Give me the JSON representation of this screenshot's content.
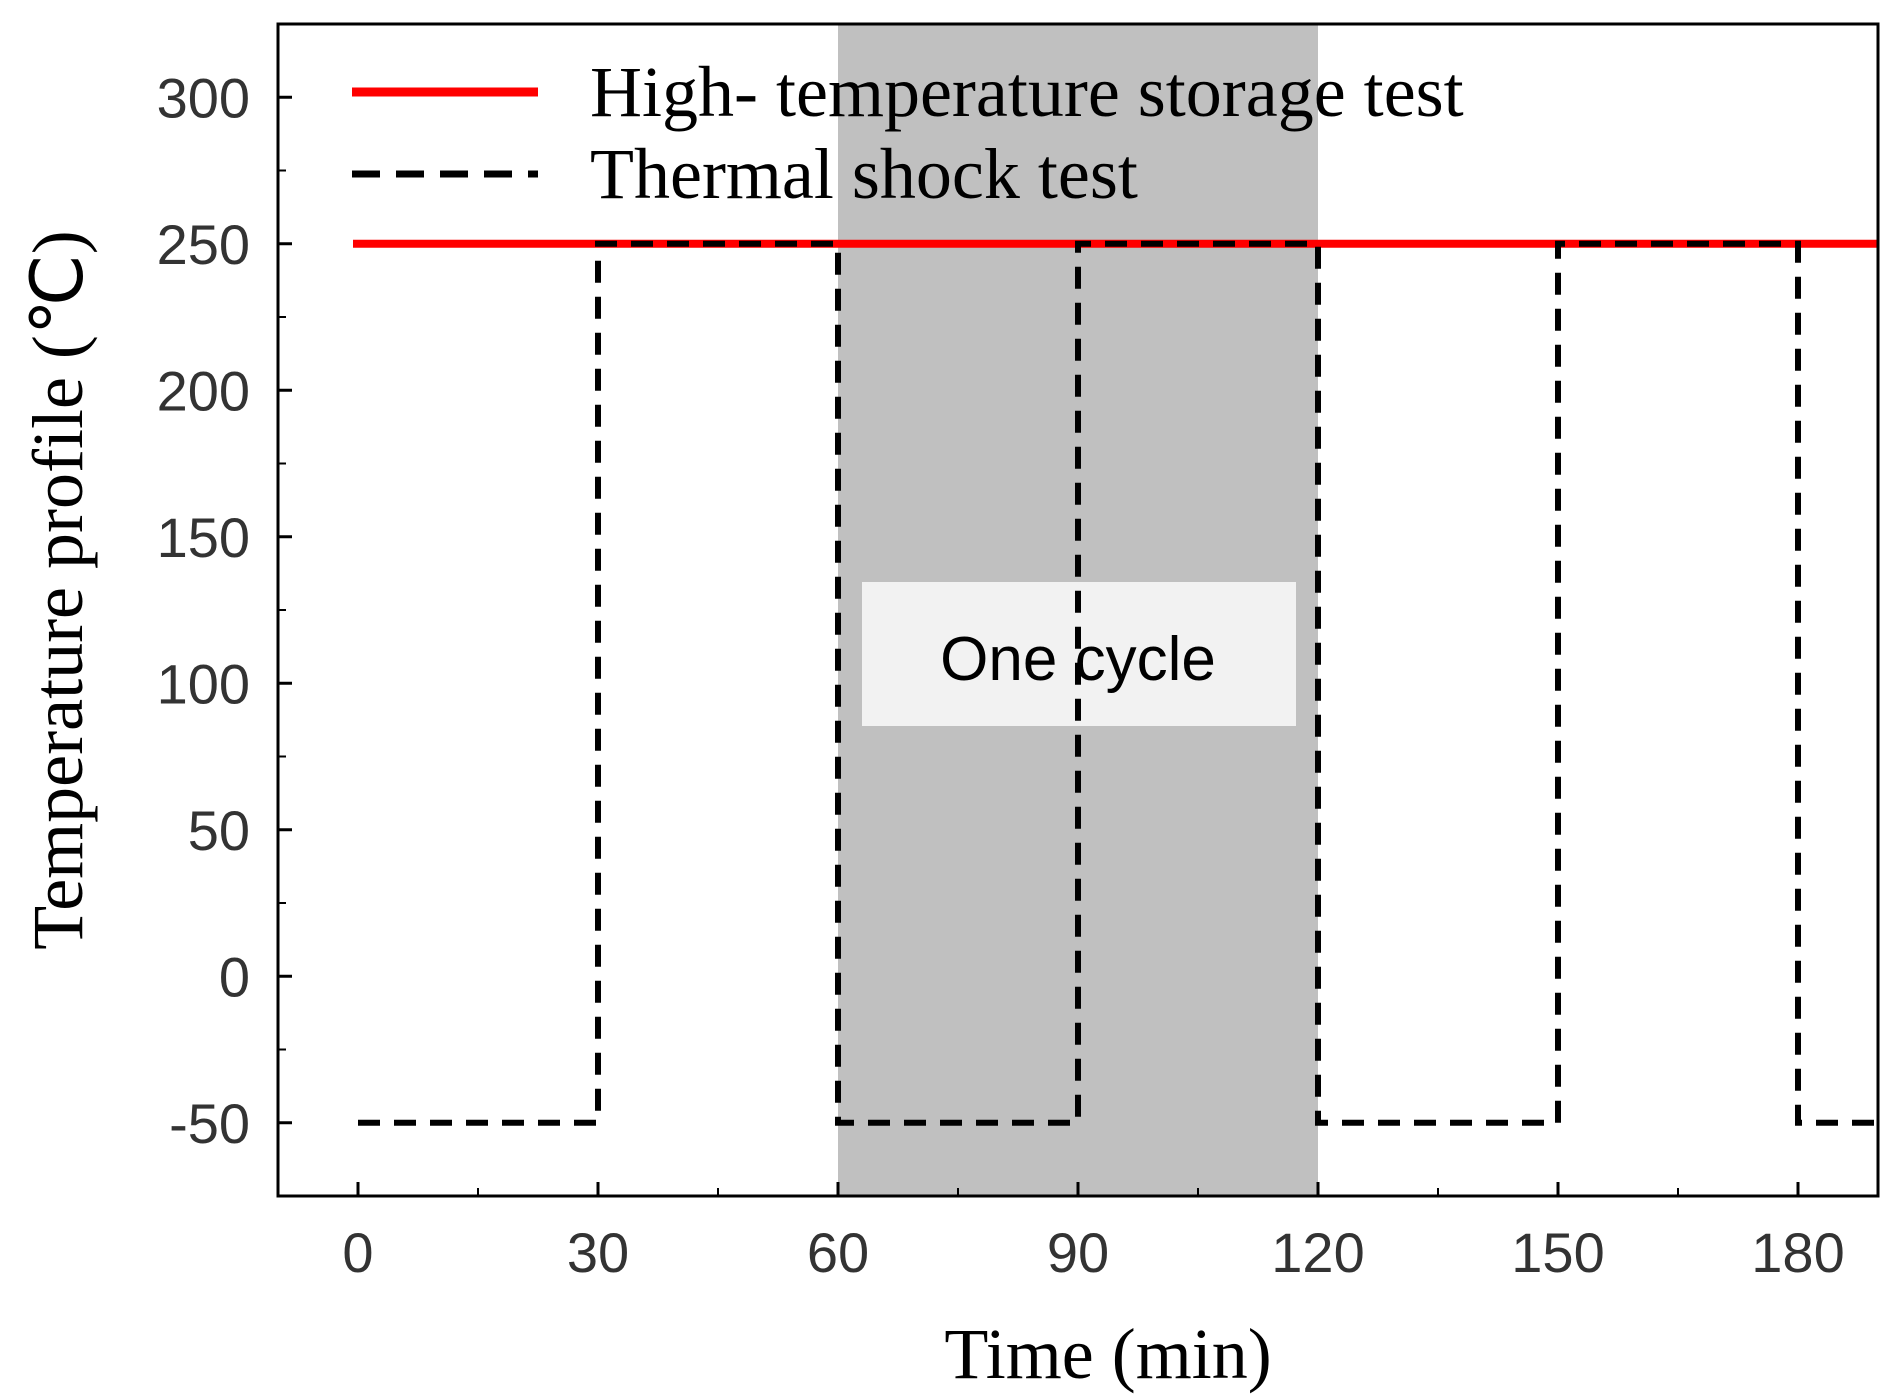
{
  "chart_data": {
    "type": "line",
    "xlabel": "Time (min)",
    "ylabel": "Temperature profile (℃)",
    "xlim": [
      -10,
      190
    ],
    "ylim": [
      -75,
      325
    ],
    "xticks": [
      0,
      30,
      60,
      90,
      120,
      150,
      180
    ],
    "yticks": [
      -50,
      0,
      50,
      100,
      150,
      200,
      250,
      300
    ],
    "grid": false,
    "legend_position": "top",
    "series": [
      {
        "name": "High- temperature storage test",
        "color": "#ff0000",
        "style": "solid",
        "x": [
          0,
          190
        ],
        "y": [
          250,
          250
        ]
      },
      {
        "name": "Thermal shock test",
        "color": "#000000",
        "style": "dashed",
        "x": [
          0,
          30,
          30,
          60,
          60,
          90,
          90,
          120,
          120,
          150,
          150,
          180,
          180,
          190
        ],
        "y": [
          -50,
          -50,
          250,
          250,
          -50,
          -50,
          250,
          250,
          -50,
          -50,
          250,
          250,
          -50,
          -50
        ]
      }
    ],
    "shaded_region": {
      "x": [
        60,
        120
      ],
      "color": "#c0c0c0",
      "label": "One cycle"
    }
  }
}
